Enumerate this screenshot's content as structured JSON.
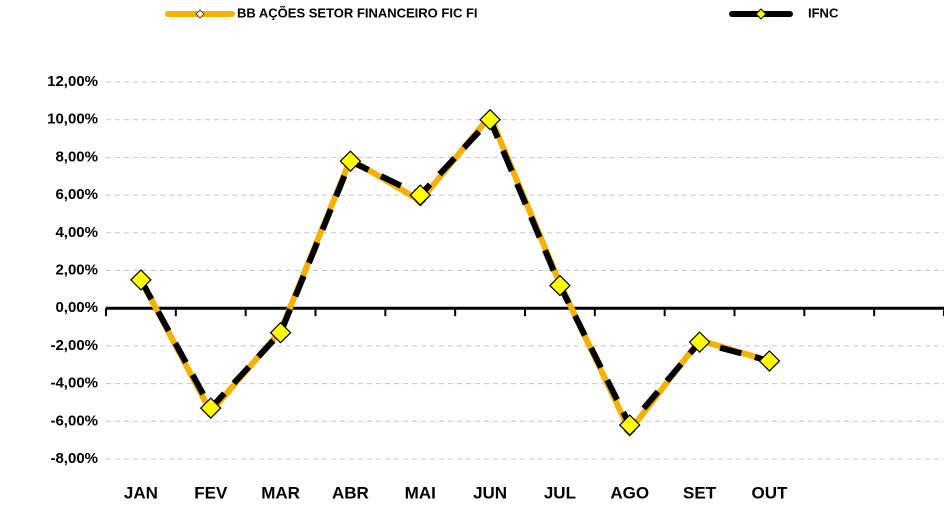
{
  "chart_data": {
    "type": "line",
    "categories": [
      "JAN",
      "FEV",
      "MAR",
      "ABR",
      "MAI",
      "JUN",
      "JUL",
      "AGO",
      "SET",
      "OUT",
      null,
      null
    ],
    "series": [
      {
        "name": "BB AÇÕES SETOR FINANCEIRO FIC FI",
        "color": "#f5b000",
        "values": [
          1.5,
          -5.5,
          -1.2,
          7.9,
          5.7,
          10.2,
          1.3,
          -6.5,
          -1.7,
          -2.8,
          null,
          null
        ]
      },
      {
        "name": "IFNC",
        "color": "#000000",
        "values": [
          1.5,
          -5.3,
          -1.3,
          7.8,
          6.0,
          10.0,
          1.2,
          -6.2,
          -1.8,
          -2.8,
          null,
          null
        ]
      }
    ],
    "ylim": [
      -8,
      12
    ],
    "yticks": [
      {
        "value": -8,
        "label": "-8,00%"
      },
      {
        "value": -6,
        "label": "-6,00%"
      },
      {
        "value": -4,
        "label": "-4,00%"
      },
      {
        "value": -2,
        "label": "-2,00%"
      },
      {
        "value": 0,
        "label": "0,00%"
      },
      {
        "value": 2,
        "label": "2,00%"
      },
      {
        "value": 4,
        "label": "4,00%"
      },
      {
        "value": 6,
        "label": "6,00%"
      },
      {
        "value": 8,
        "label": "8,00%"
      },
      {
        "value": 10,
        "label": "10,00%"
      },
      {
        "value": 12,
        "label": "12,00%"
      }
    ],
    "grid": true,
    "legend": "top"
  }
}
